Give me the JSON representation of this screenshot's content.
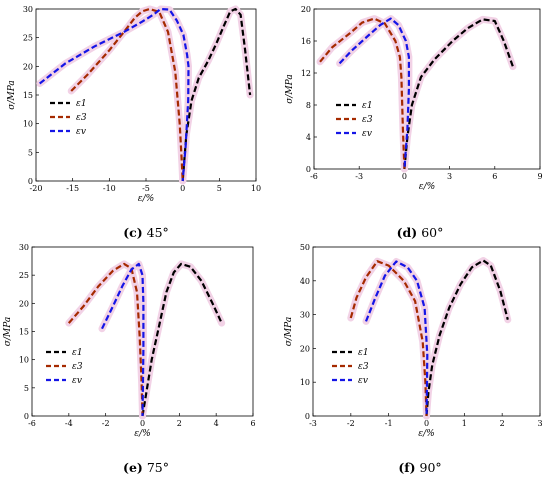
{
  "chart_data": [
    {
      "type": "line",
      "caption_letter": "(c)",
      "caption_text": "45°",
      "xlabel": "ε/%",
      "ylabel": "σ/MPa",
      "xlim": [
        -20,
        10
      ],
      "ylim": [
        0,
        30
      ],
      "xticks": [
        "-20",
        "-15",
        "-10",
        "-5",
        "0",
        "5",
        "10"
      ],
      "yticks": [
        "0",
        "5",
        "10",
        "15",
        "20",
        "25",
        "30"
      ],
      "legend_position": "middle-left",
      "series": [
        {
          "name": "ε1",
          "color": "#000000",
          "points": [
            [
              0,
              0
            ],
            [
              0.5,
              8
            ],
            [
              1.2,
              14
            ],
            [
              2.2,
              18
            ],
            [
              3.5,
              21
            ],
            [
              4.6,
              24
            ],
            [
              5.6,
              27
            ],
            [
              6.5,
              29.6
            ],
            [
              7.2,
              30
            ],
            [
              7.9,
              29
            ],
            [
              8.5,
              23
            ],
            [
              9.2,
              15
            ]
          ]
        },
        {
          "name": "ε3",
          "color": "#a52a00",
          "points": [
            [
              -15.2,
              15.7
            ],
            [
              -13,
              18.5
            ],
            [
              -10,
              22.8
            ],
            [
              -8,
              26
            ],
            [
              -6.5,
              28.5
            ],
            [
              -5.5,
              29.6
            ],
            [
              -4.5,
              30
            ],
            [
              -3.2,
              29.5
            ],
            [
              -2,
              26
            ],
            [
              -1,
              19
            ],
            [
              -0.4,
              10
            ],
            [
              -0.1,
              3
            ],
            [
              0,
              0
            ]
          ]
        },
        {
          "name": "εv",
          "color": "#1515e6",
          "points": [
            [
              -19.5,
              17
            ],
            [
              -16,
              20.5
            ],
            [
              -12,
              23.5
            ],
            [
              -8,
              26
            ],
            [
              -5.5,
              27.8
            ],
            [
              -4,
              29
            ],
            [
              -3,
              30
            ],
            [
              -1.8,
              29.9
            ],
            [
              -0.8,
              28
            ],
            [
              0.1,
              25.5
            ],
            [
              0.6,
              22
            ],
            [
              0.8,
              20
            ],
            [
              0.75,
              14
            ],
            [
              0.4,
              6
            ],
            [
              0,
              0
            ]
          ]
        }
      ]
    },
    {
      "type": "line",
      "caption_letter": "(d)",
      "caption_text": "60°",
      "xlabel": "ε/%",
      "ylabel": "σ/MPa",
      "xlim": [
        -6,
        9
      ],
      "ylim": [
        0,
        20
      ],
      "xticks": [
        "-6",
        "-3",
        "0",
        "3",
        "6",
        "9"
      ],
      "yticks": [
        "0",
        "4",
        "8",
        "12",
        "16",
        "20"
      ],
      "legend_position": "middle-left",
      "series": [
        {
          "name": "ε1",
          "color": "#000000",
          "points": [
            [
              0,
              0
            ],
            [
              0.2,
              4
            ],
            [
              0.5,
              8
            ],
            [
              1.1,
              11.5
            ],
            [
              2,
              13.7
            ],
            [
              3.2,
              16
            ],
            [
              4.2,
              17.6
            ],
            [
              5.2,
              18.7
            ],
            [
              6,
              18.5
            ],
            [
              6.6,
              16
            ],
            [
              7.2,
              12.8
            ]
          ]
        },
        {
          "name": "ε3",
          "color": "#a52a00",
          "points": [
            [
              -5.6,
              13.4
            ],
            [
              -4.8,
              15.2
            ],
            [
              -3.6,
              17
            ],
            [
              -2.8,
              18.3
            ],
            [
              -2,
              18.8
            ],
            [
              -1.3,
              18.2
            ],
            [
              -0.6,
              16
            ],
            [
              -0.3,
              14
            ],
            [
              -0.2,
              11.5
            ],
            [
              -0.1,
              5
            ],
            [
              0,
              0
            ]
          ]
        },
        {
          "name": "εv",
          "color": "#1515e6",
          "points": [
            [
              -4.3,
              13.2
            ],
            [
              -3.5,
              14.8
            ],
            [
              -2.5,
              16.5
            ],
            [
              -1.6,
              18
            ],
            [
              -0.9,
              18.8
            ],
            [
              -0.4,
              18
            ],
            [
              0.1,
              16
            ],
            [
              0.3,
              14
            ],
            [
              0.3,
              10
            ],
            [
              0.2,
              5
            ],
            [
              0,
              0
            ]
          ]
        }
      ]
    },
    {
      "type": "line",
      "caption_letter": "(e)",
      "caption_text": "75°",
      "xlabel": "ε/%",
      "ylabel": "σ/MPa",
      "xlim": [
        -6,
        6
      ],
      "ylim": [
        0,
        30
      ],
      "xticks": [
        "-6",
        "-4",
        "-2",
        "0",
        "2",
        "4",
        "6"
      ],
      "yticks": [
        "0",
        "5",
        "10",
        "15",
        "20",
        "25",
        "30"
      ],
      "legend_position": "middle-left",
      "series": [
        {
          "name": "ε1",
          "color": "#000000",
          "points": [
            [
              0,
              0
            ],
            [
              0.2,
              4
            ],
            [
              0.5,
              10
            ],
            [
              0.9,
              16
            ],
            [
              1.3,
              22
            ],
            [
              1.7,
              25.5
            ],
            [
              2.1,
              27
            ],
            [
              2.6,
              26.5
            ],
            [
              3.2,
              24
            ],
            [
              3.8,
              20
            ],
            [
              4.3,
              16.5
            ]
          ]
        },
        {
          "name": "ε3",
          "color": "#a52a00",
          "points": [
            [
              -4,
              16.5
            ],
            [
              -3.2,
              19.5
            ],
            [
              -2.4,
              23
            ],
            [
              -1.6,
              25.8
            ],
            [
              -1,
              27
            ],
            [
              -0.6,
              26.2
            ],
            [
              -0.3,
              22
            ],
            [
              -0.15,
              14
            ],
            [
              -0.05,
              6
            ],
            [
              0,
              0
            ]
          ]
        },
        {
          "name": "εv",
          "color": "#1515e6",
          "points": [
            [
              -2.2,
              15.5
            ],
            [
              -1.6,
              19.5
            ],
            [
              -1.1,
              23
            ],
            [
              -0.6,
              26
            ],
            [
              -0.2,
              27
            ],
            [
              0,
              25
            ],
            [
              0.05,
              20
            ],
            [
              0.05,
              12
            ],
            [
              0.02,
              5
            ],
            [
              0,
              0
            ]
          ]
        }
      ]
    },
    {
      "type": "line",
      "caption_letter": "(f)",
      "caption_text": "90°",
      "xlabel": "ε/%",
      "ylabel": "σ/MPa",
      "xlim": [
        -3,
        3
      ],
      "ylim": [
        0,
        50
      ],
      "xticks": [
        "-3",
        "-2",
        "-1",
        "0",
        "1",
        "2",
        "3"
      ],
      "yticks": [
        "0",
        "10",
        "20",
        "30",
        "40",
        "50"
      ],
      "legend_position": "middle-left",
      "series": [
        {
          "name": "ε1",
          "color": "#000000",
          "points": [
            [
              0,
              0
            ],
            [
              0.05,
              7
            ],
            [
              0.15,
              15
            ],
            [
              0.35,
              24
            ],
            [
              0.6,
              32
            ],
            [
              0.9,
              39
            ],
            [
              1.2,
              44
            ],
            [
              1.5,
              46
            ],
            [
              1.7,
              44.5
            ],
            [
              1.95,
              37
            ],
            [
              2.15,
              28.5
            ]
          ]
        },
        {
          "name": "ε3",
          "color": "#a52a00",
          "points": [
            [
              -2,
              29
            ],
            [
              -1.85,
              35
            ],
            [
              -1.6,
              41
            ],
            [
              -1.3,
              45.8
            ],
            [
              -1,
              44.5
            ],
            [
              -0.6,
              40
            ],
            [
              -0.3,
              34
            ],
            [
              -0.1,
              22
            ],
            [
              -0.03,
              10
            ],
            [
              0,
              0
            ]
          ]
        },
        {
          "name": "εv",
          "color": "#1515e6",
          "points": [
            [
              -1.6,
              28
            ],
            [
              -1.35,
              35
            ],
            [
              -1.1,
              41.5
            ],
            [
              -0.8,
              45.7
            ],
            [
              -0.5,
              44
            ],
            [
              -0.25,
              40
            ],
            [
              -0.05,
              32
            ],
            [
              0.02,
              18
            ],
            [
              0.01,
              8
            ],
            [
              0,
              0
            ]
          ]
        }
      ]
    }
  ]
}
